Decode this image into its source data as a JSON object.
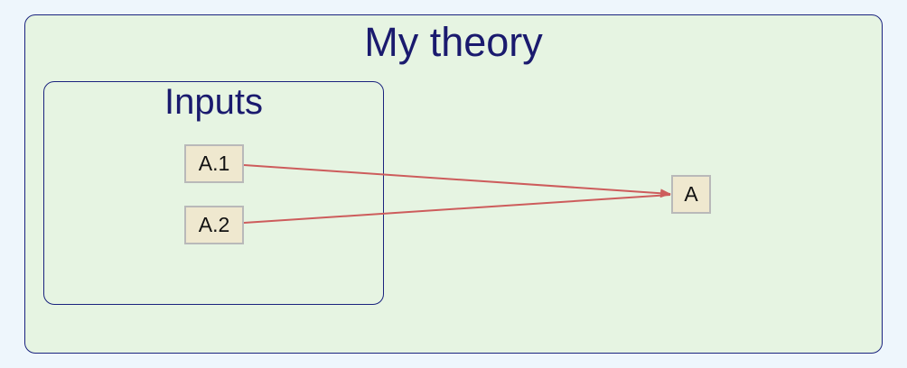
{
  "clusters": {
    "outer": {
      "title": "My theory"
    },
    "inner": {
      "title": "Inputs"
    }
  },
  "nodes": {
    "a1": {
      "label": "A.1"
    },
    "a2": {
      "label": "A.2"
    },
    "a": {
      "label": "A"
    }
  },
  "edges": [
    {
      "from": "A.1",
      "to": "A"
    },
    {
      "from": "A.2",
      "to": "A"
    }
  ],
  "colors": {
    "background": "#eef6fc",
    "cluster_fill": "#e6f4e2",
    "cluster_border": "#1a237e",
    "title_text": "#1a1a6e",
    "node_fill": "#efe8cf",
    "node_border": "#b9b9b9",
    "edge": "#cd5c5c"
  }
}
